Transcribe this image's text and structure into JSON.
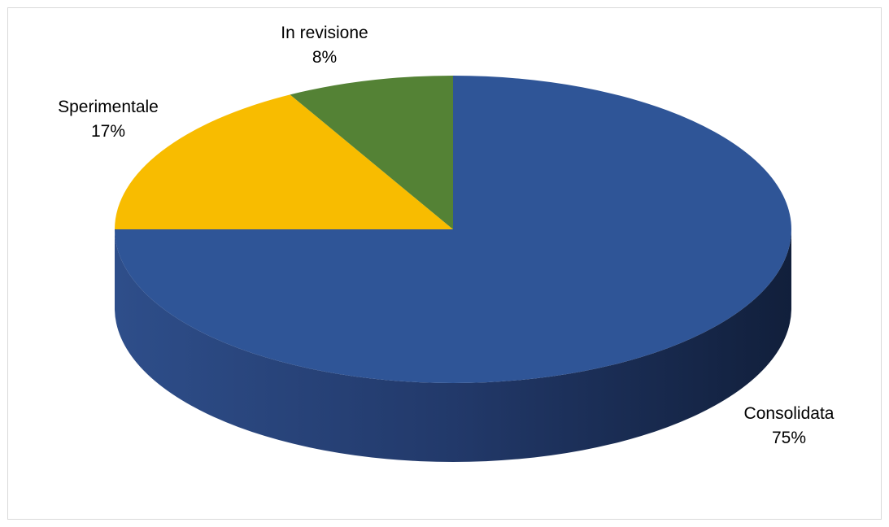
{
  "chart_data": {
    "type": "pie",
    "title": "",
    "three_d": true,
    "start_angle": "12 o'clock, clockwise",
    "slices": [
      {
        "label": "Consolidata",
        "value": 75,
        "percent_label": "75%",
        "color": "#2F5597"
      },
      {
        "label": "Sperimentale",
        "value": 17,
        "percent_label": "17%",
        "color": "#F8BC00"
      },
      {
        "label": "In revisione",
        "value": 8,
        "percent_label": "8%",
        "color": "#548235"
      }
    ],
    "side_colors": {
      "light": "#2E4E8A",
      "dark": "#111F3B"
    },
    "legend": "none"
  }
}
